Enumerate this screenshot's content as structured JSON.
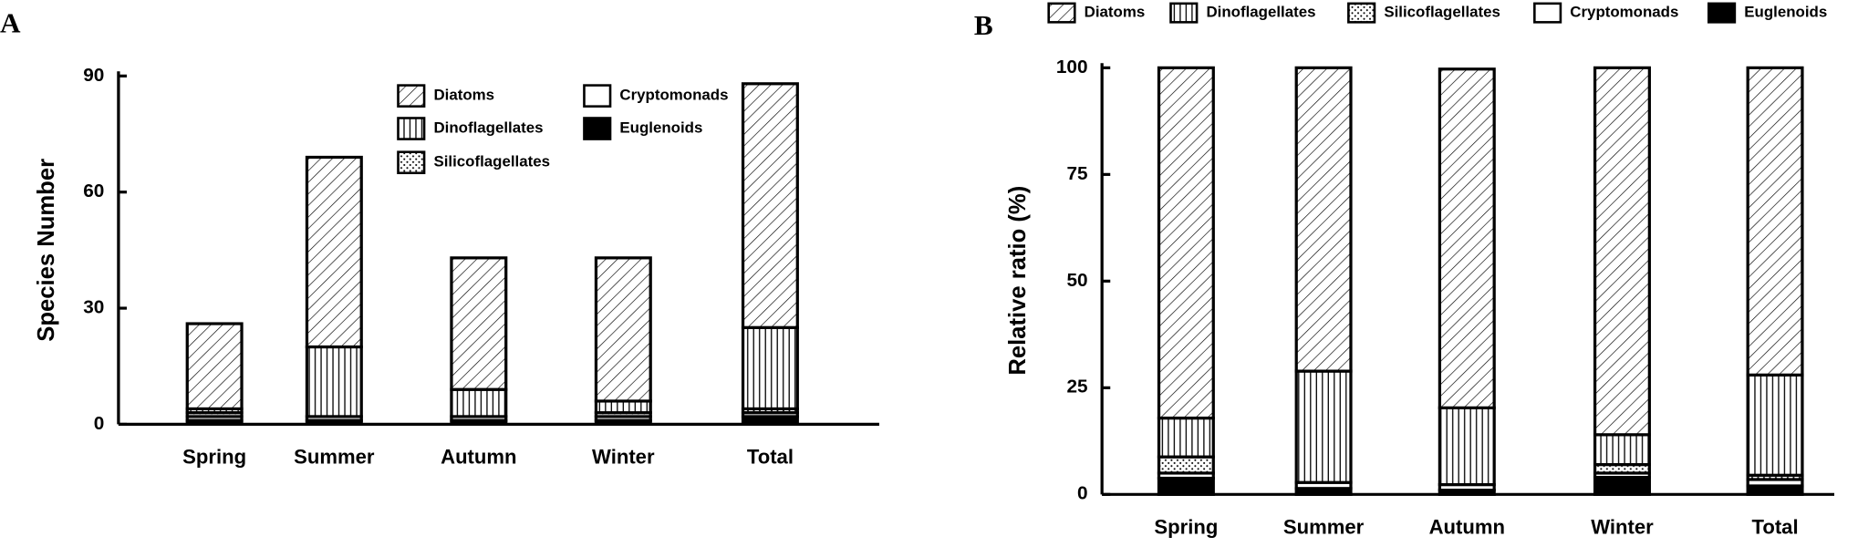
{
  "chart_data": [
    {
      "type": "bar",
      "stacked": true,
      "panel": "A",
      "ylabel": "Species Number",
      "categories": [
        "Spring",
        "Summer",
        "Autumn",
        "Winter",
        "Total"
      ],
      "series": [
        {
          "name": "Euglenoids",
          "color": "#000000",
          "hatch": "solid",
          "values": [
            1,
            1,
            1,
            1,
            2
          ]
        },
        {
          "name": "Cryptomonads",
          "color": "#ffffff",
          "hatch": "none",
          "values": [
            1,
            1,
            1,
            1,
            1
          ]
        },
        {
          "name": "Silicoflagellates",
          "color": "#ffffff",
          "hatch": "dots",
          "values": [
            1,
            0,
            0,
            1,
            1
          ]
        },
        {
          "name": "Dinoflagellates",
          "color": "#ffffff",
          "hatch": "vertical",
          "values": [
            1,
            18,
            7,
            3,
            21
          ]
        },
        {
          "name": "Diatoms",
          "color": "#ffffff",
          "hatch": "diagonal",
          "values": [
            22,
            49,
            34,
            37,
            63
          ]
        }
      ],
      "ylim": [
        0,
        90
      ],
      "yticks": [
        0,
        30,
        60,
        90
      ],
      "legend": "upper center"
    },
    {
      "type": "bar",
      "stacked": true,
      "panel": "B",
      "ylabel": "Relative ratio (%)",
      "categories": [
        "Spring",
        "Summer",
        "Autumn",
        "Winter",
        "Total"
      ],
      "series": [
        {
          "name": "Euglenoids",
          "color": "#000000",
          "hatch": "solid",
          "values": [
            3.8,
            1.4,
            1,
            4,
            2
          ]
        },
        {
          "name": "Cryptomonads",
          "color": "#ffffff",
          "hatch": "none",
          "values": [
            1.2,
            1.4,
            1.3,
            1,
            1.5
          ]
        },
        {
          "name": "Silicoflagellates",
          "color": "#ffffff",
          "hatch": "dots",
          "values": [
            3.8,
            0,
            0,
            2,
            1
          ]
        },
        {
          "name": "Dinoflagellates",
          "color": "#ffffff",
          "hatch": "vertical",
          "values": [
            9.1,
            26.1,
            18,
            7,
            23.5
          ]
        },
        {
          "name": "Diatoms",
          "color": "#ffffff",
          "hatch": "diagonal",
          "values": [
            82.1,
            71.1,
            79.4,
            86,
            72
          ]
        }
      ],
      "ylim": [
        0,
        100
      ],
      "yticks": [
        0,
        25,
        50,
        75,
        100
      ],
      "legend": "top"
    }
  ]
}
